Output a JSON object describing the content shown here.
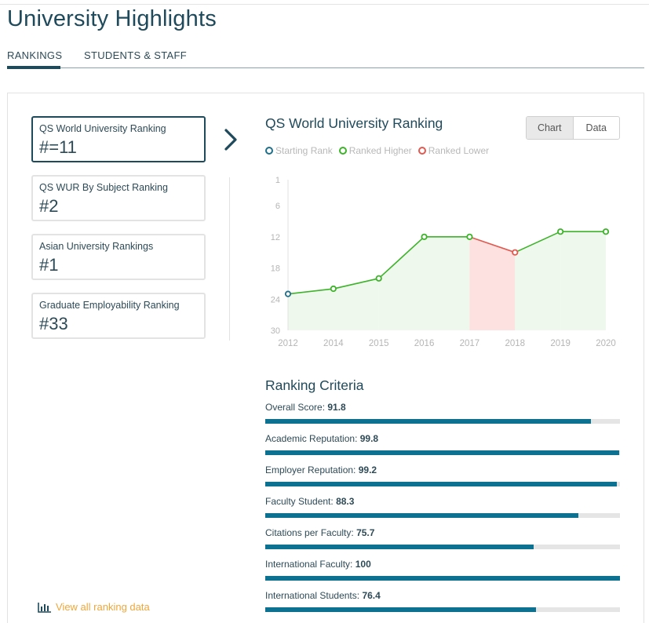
{
  "page": {
    "title": "University Highlights"
  },
  "tabs": [
    {
      "label": "RANKINGS",
      "active": true
    },
    {
      "label": "STUDENTS & STAFF",
      "active": false
    }
  ],
  "rankings": [
    {
      "label": "QS World University Ranking",
      "value": "#=11",
      "active": true
    },
    {
      "label": "QS WUR By Subject Ranking",
      "value": "#2",
      "active": false
    },
    {
      "label": "Asian University Rankings",
      "value": "#1",
      "active": false
    },
    {
      "label": "Graduate Employability Ranking",
      "value": "#33",
      "active": false
    }
  ],
  "chart_panel": {
    "title": "QS World University Ranking",
    "toggle": {
      "chart_label": "Chart",
      "data_label": "Data",
      "selected": "Chart"
    },
    "legend": [
      {
        "label": "Starting Rank",
        "color": "#1f6f8b"
      },
      {
        "label": "Ranked Higher",
        "color": "#3db32a"
      },
      {
        "label": "Ranked Lower",
        "color": "#e05a50"
      }
    ]
  },
  "chart_data": {
    "type": "line",
    "x": [
      "2012",
      "2014",
      "2015",
      "2016",
      "2017",
      "2018",
      "2019",
      "2020"
    ],
    "values": [
      23,
      22,
      20,
      12,
      12,
      15,
      11,
      11
    ],
    "point_status": [
      "start",
      "higher",
      "higher",
      "higher",
      "higher",
      "lower",
      "higher",
      "higher"
    ],
    "yticks": [
      1,
      6,
      12,
      18,
      24,
      30
    ],
    "ylim": [
      1,
      30
    ],
    "y_inverted": true,
    "colors": {
      "start": "#1f6f8b",
      "higher": "#3db32a",
      "lower": "#e05a50",
      "higher_fill": "#eef8ec",
      "lower_fill": "#fde0e0"
    }
  },
  "criteria": {
    "title": "Ranking Criteria",
    "items": [
      {
        "label": "Overall Score:",
        "value": "91.8",
        "score": 91.8
      },
      {
        "label": "Academic Reputation:",
        "value": "99.8",
        "score": 99.8
      },
      {
        "label": "Employer Reputation:",
        "value": "99.2",
        "score": 99.2
      },
      {
        "label": "Faculty Student:",
        "value": "88.3",
        "score": 88.3
      },
      {
        "label": "Citations per Faculty:",
        "value": "75.7",
        "score": 75.7
      },
      {
        "label": "International Faculty:",
        "value": "100",
        "score": 100
      },
      {
        "label": "International Students:",
        "value": "76.4",
        "score": 76.4
      }
    ]
  },
  "footer": {
    "view_all": "View all ranking data",
    "icon": "bar-chart-icon"
  }
}
